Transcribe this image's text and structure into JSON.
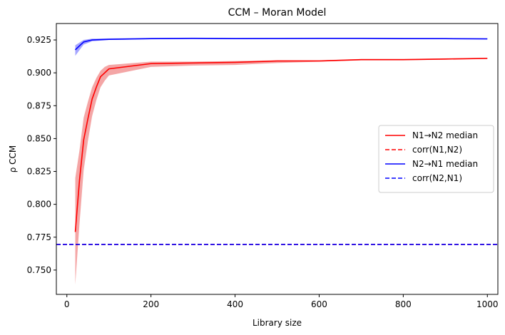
{
  "chart_data": {
    "type": "line",
    "title": "CCM – Moran Model",
    "xlabel": "Library size",
    "ylabel": "ρ CCM",
    "xlim": [
      -25,
      1025
    ],
    "ylim": [
      0.7315,
      0.9375
    ],
    "xticks": [
      0,
      200,
      400,
      600,
      800,
      1000
    ],
    "xtick_labels": [
      "0",
      "200",
      "400",
      "600",
      "800",
      "1000"
    ],
    "yticks": [
      0.75,
      0.775,
      0.8,
      0.825,
      0.85,
      0.875,
      0.9,
      0.925
    ],
    "ytick_labels": [
      "0.750",
      "0.775",
      "0.800",
      "0.825",
      "0.850",
      "0.875",
      "0.900",
      "0.925"
    ],
    "grid": false,
    "legend_position": "center-right",
    "series": [
      {
        "name": "N1→N2 median",
        "color": "#ff0000",
        "line_style": "solid",
        "x": [
          20,
          30,
          40,
          50,
          60,
          70,
          80,
          90,
          100,
          200,
          300,
          400,
          500,
          600,
          700,
          800,
          900,
          1000
        ],
        "median": [
          0.779,
          0.818,
          0.849,
          0.865,
          0.88,
          0.889,
          0.897,
          0.9,
          0.903,
          0.907,
          0.9075,
          0.908,
          0.909,
          0.909,
          0.91,
          0.91,
          0.9105,
          0.911
        ],
        "band_low": [
          0.739,
          0.785,
          0.826,
          0.848,
          0.867,
          0.879,
          0.889,
          0.894,
          0.898,
          0.9045,
          0.9055,
          0.906,
          0.9075,
          0.9085,
          0.9095,
          0.9095,
          0.91,
          0.9105
        ],
        "band_high": [
          0.82,
          0.841,
          0.866,
          0.878,
          0.889,
          0.896,
          0.9015,
          0.9045,
          0.906,
          0.9085,
          0.9085,
          0.909,
          0.9095,
          0.9095,
          0.9105,
          0.9105,
          0.911,
          0.9115
        ],
        "band_color": "#f08080"
      },
      {
        "name": "corr(N1,N2)",
        "color": "#ff0000",
        "line_style": "dashed",
        "y": 0.7695
      },
      {
        "name": "N2→N1 median",
        "color": "#0000ff",
        "line_style": "solid",
        "x": [
          20,
          40,
          60,
          100,
          200,
          300,
          400,
          500,
          600,
          700,
          800,
          900,
          1000
        ],
        "median": [
          0.9175,
          0.9235,
          0.925,
          0.9255,
          0.926,
          0.9262,
          0.926,
          0.9261,
          0.9262,
          0.9262,
          0.926,
          0.926,
          0.9258
        ],
        "band_low": [
          0.913,
          0.9215,
          0.924,
          0.925,
          0.9255,
          0.9258,
          0.9256,
          0.9258,
          0.9258,
          0.9258,
          0.9257,
          0.9257,
          0.9255
        ],
        "band_high": [
          0.921,
          0.925,
          0.926,
          0.9262,
          0.9265,
          0.9267,
          0.9265,
          0.9265,
          0.9266,
          0.9266,
          0.9265,
          0.9264,
          0.9262
        ],
        "band_color": "#8080ff"
      },
      {
        "name": "corr(N2,N1)",
        "color": "#0000ff",
        "line_style": "dashed",
        "y": 0.7695
      }
    ]
  }
}
